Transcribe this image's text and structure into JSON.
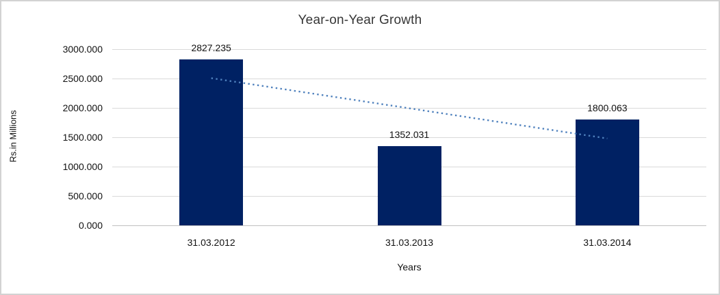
{
  "chart_data": {
    "type": "bar",
    "title": "Year-on-Year Growth",
    "xlabel": "Years",
    "ylabel": "Rs.in Millions",
    "categories": [
      "31.03.2012",
      "31.03.2013",
      "31.03.2014"
    ],
    "values": [
      2827.235,
      1352.031,
      1800.063
    ],
    "data_labels": [
      "2827.235",
      "1352.031",
      "1800.063"
    ],
    "ylim": [
      0,
      3000
    ],
    "ytick_step": 500,
    "ytick_labels": [
      "0.000",
      "500.000",
      "1000.000",
      "1500.000",
      "2000.000",
      "2500.000",
      "3000.000"
    ],
    "grid": true,
    "legend_position": "none",
    "bar_color": "#002163",
    "gridline_color": "#d9d9d9",
    "axis_line_color": "#c0c0c0",
    "frame_color": "#d2d2d2",
    "trendline": {
      "type": "linear",
      "style": "dotted",
      "color": "#4f81bd",
      "start_value": 2506.696,
      "end_value": 1479.524
    }
  }
}
